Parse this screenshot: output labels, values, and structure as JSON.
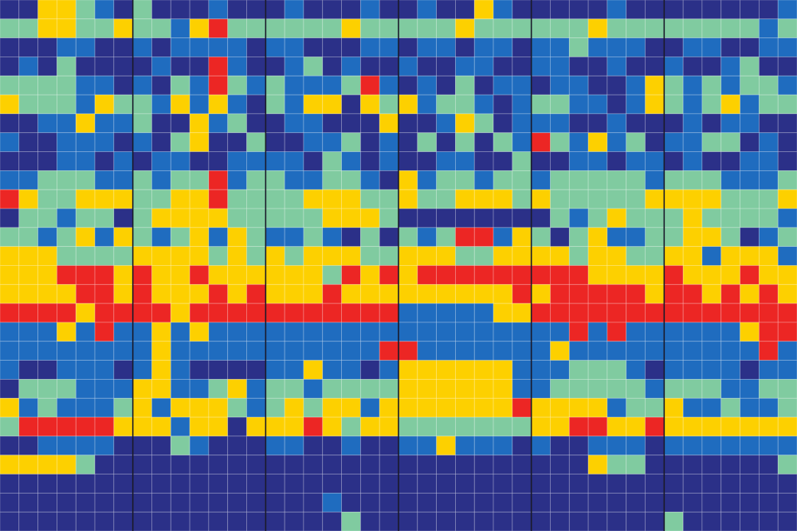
{
  "chart_data": {
    "type": "heatmap",
    "colors": [
      "#2b3088",
      "#1f6cbf",
      "#80cba0",
      "#fdd000",
      "#ec2624"
    ],
    "values": [
      [
        0,
        0,
        3,
        3,
        2,
        1,
        0,
        2,
        0,
        0,
        0,
        1,
        0,
        0,
        0,
        1,
        0,
        0,
        0,
        1,
        0,
        0,
        1,
        0,
        0,
        3,
        1,
        0,
        0,
        0,
        0,
        0,
        1,
        0,
        0,
        0,
        0,
        0,
        0,
        0,
        0,
        1
      ],
      [
        2,
        2,
        3,
        3,
        2,
        2,
        3,
        2,
        2,
        1,
        3,
        4,
        2,
        2,
        2,
        2,
        2,
        2,
        3,
        2,
        2,
        2,
        2,
        2,
        3,
        2,
        2,
        2,
        2,
        2,
        2,
        3,
        2,
        2,
        2,
        2,
        2,
        2,
        2,
        2,
        1,
        2
      ],
      [
        0,
        0,
        0,
        1,
        1,
        0,
        0,
        1,
        0,
        1,
        1,
        1,
        1,
        0,
        1,
        1,
        0,
        0,
        0,
        1,
        1,
        0,
        1,
        1,
        0,
        1,
        1,
        0,
        1,
        1,
        2,
        1,
        1,
        1,
        0,
        0,
        1,
        1,
        0,
        0,
        1,
        1
      ],
      [
        0,
        1,
        0,
        2,
        0,
        0,
        0,
        0,
        1,
        0,
        0,
        4,
        1,
        0,
        0,
        1,
        2,
        0,
        1,
        0,
        0,
        1,
        0,
        0,
        1,
        1,
        0,
        0,
        1,
        1,
        0,
        0,
        1,
        0,
        0,
        1,
        0,
        0,
        1,
        2,
        0,
        0
      ],
      [
        2,
        2,
        2,
        2,
        1,
        1,
        0,
        1,
        0,
        2,
        1,
        4,
        2,
        1,
        2,
        1,
        1,
        1,
        2,
        4,
        1,
        0,
        1,
        0,
        2,
        0,
        1,
        1,
        0,
        1,
        1,
        0,
        0,
        1,
        3,
        2,
        1,
        2,
        1,
        2,
        2,
        1
      ],
      [
        3,
        2,
        2,
        2,
        1,
        3,
        2,
        2,
        1,
        3,
        1,
        3,
        1,
        0,
        2,
        1,
        3,
        3,
        0,
        3,
        2,
        3,
        1,
        2,
        2,
        1,
        0,
        1,
        2,
        2,
        1,
        1,
        0,
        1,
        3,
        2,
        1,
        2,
        3,
        1,
        2,
        2
      ],
      [
        0,
        0,
        1,
        1,
        3,
        1,
        1,
        2,
        0,
        0,
        3,
        1,
        2,
        0,
        0,
        1,
        1,
        0,
        0,
        0,
        3,
        0,
        0,
        1,
        3,
        2,
        0,
        1,
        1,
        1,
        0,
        0,
        1,
        0,
        0,
        0,
        1,
        0,
        1,
        1,
        0,
        0
      ],
      [
        1,
        0,
        0,
        1,
        1,
        1,
        0,
        1,
        0,
        2,
        3,
        0,
        0,
        2,
        0,
        0,
        1,
        1,
        2,
        0,
        1,
        0,
        2,
        0,
        2,
        0,
        2,
        1,
        4,
        2,
        1,
        3,
        1,
        2,
        0,
        1,
        1,
        2,
        2,
        0,
        1,
        0
      ],
      [
        0,
        0,
        0,
        1,
        1,
        0,
        1,
        0,
        1,
        1,
        0,
        0,
        1,
        1,
        1,
        1,
        0,
        2,
        1,
        0,
        1,
        0,
        0,
        1,
        1,
        0,
        0,
        2,
        0,
        0,
        1,
        1,
        0,
        1,
        1,
        0,
        1,
        0,
        0,
        1,
        1,
        0
      ],
      [
        1,
        1,
        2,
        2,
        2,
        1,
        1,
        2,
        1,
        2,
        2,
        4,
        1,
        2,
        2,
        1,
        1,
        2,
        2,
        1,
        0,
        3,
        1,
        2,
        2,
        1,
        2,
        2,
        1,
        2,
        2,
        2,
        2,
        2,
        1,
        2,
        2,
        2,
        1,
        1,
        1,
        2
      ],
      [
        4,
        3,
        2,
        2,
        3,
        3,
        3,
        2,
        2,
        3,
        3,
        4,
        2,
        2,
        2,
        2,
        3,
        3,
        3,
        2,
        2,
        3,
        2,
        2,
        3,
        3,
        3,
        2,
        3,
        2,
        2,
        2,
        2,
        2,
        3,
        3,
        3,
        3,
        2,
        2,
        2,
        3
      ],
      [
        0,
        2,
        2,
        1,
        2,
        2,
        0,
        2,
        3,
        3,
        3,
        3,
        2,
        2,
        2,
        2,
        2,
        3,
        3,
        3,
        2,
        0,
        0,
        0,
        0,
        0,
        0,
        0,
        0,
        2,
        1,
        2,
        3,
        2,
        2,
        2,
        3,
        2,
        2,
        2,
        2,
        1
      ],
      [
        2,
        2,
        1,
        2,
        3,
        1,
        3,
        2,
        1,
        2,
        3,
        1,
        3,
        2,
        1,
        1,
        2,
        1,
        0,
        2,
        0,
        2,
        1,
        2,
        4,
        4,
        1,
        3,
        2,
        0,
        2,
        3,
        1,
        1,
        2,
        2,
        3,
        3,
        2,
        0,
        1,
        2
      ],
      [
        3,
        3,
        3,
        2,
        2,
        2,
        2,
        3,
        3,
        3,
        3,
        2,
        3,
        2,
        3,
        2,
        3,
        3,
        3,
        2,
        2,
        3,
        3,
        3,
        2,
        2,
        3,
        3,
        3,
        3,
        2,
        3,
        3,
        2,
        2,
        3,
        3,
        1,
        3,
        3,
        3,
        1
      ],
      [
        3,
        3,
        3,
        4,
        4,
        4,
        3,
        4,
        3,
        3,
        4,
        3,
        3,
        3,
        3,
        3,
        3,
        2,
        4,
        3,
        4,
        3,
        4,
        4,
        4,
        4,
        4,
        4,
        4,
        4,
        4,
        3,
        3,
        3,
        3,
        4,
        3,
        3,
        3,
        4,
        3,
        3
      ],
      [
        3,
        3,
        3,
        3,
        4,
        4,
        3,
        4,
        3,
        3,
        3,
        4,
        3,
        4,
        3,
        3,
        3,
        4,
        3,
        3,
        3,
        3,
        3,
        3,
        3,
        3,
        3,
        4,
        3,
        4,
        4,
        4,
        4,
        4,
        3,
        4,
        4,
        3,
        4,
        3,
        4,
        3
      ],
      [
        4,
        4,
        4,
        4,
        3,
        4,
        4,
        4,
        4,
        3,
        4,
        4,
        4,
        4,
        4,
        4,
        4,
        4,
        4,
        4,
        4,
        1,
        1,
        1,
        1,
        1,
        3,
        3,
        4,
        4,
        4,
        4,
        4,
        4,
        4,
        4,
        4,
        4,
        4,
        4,
        4,
        4
      ],
      [
        1,
        1,
        1,
        3,
        1,
        4,
        1,
        1,
        3,
        1,
        3,
        1,
        1,
        1,
        1,
        1,
        1,
        1,
        1,
        1,
        1,
        1,
        1,
        1,
        1,
        1,
        1,
        1,
        1,
        1,
        4,
        1,
        4,
        1,
        1,
        1,
        1,
        1,
        1,
        3,
        4,
        4
      ],
      [
        1,
        1,
        1,
        1,
        1,
        1,
        1,
        1,
        3,
        1,
        1,
        1,
        1,
        1,
        1,
        1,
        1,
        1,
        1,
        1,
        4,
        4,
        1,
        1,
        1,
        1,
        1,
        1,
        1,
        3,
        1,
        1,
        1,
        1,
        1,
        1,
        1,
        1,
        1,
        1,
        4,
        1
      ],
      [
        1,
        0,
        0,
        1,
        1,
        1,
        0,
        1,
        3,
        1,
        0,
        0,
        0,
        0,
        1,
        1,
        3,
        1,
        1,
        0,
        1,
        3,
        3,
        3,
        3,
        3,
        3,
        1,
        1,
        1,
        2,
        2,
        2,
        1,
        0,
        1,
        1,
        1,
        1,
        0,
        1,
        1
      ],
      [
        0,
        2,
        2,
        2,
        1,
        1,
        1,
        3,
        3,
        1,
        1,
        2,
        3,
        1,
        2,
        2,
        1,
        2,
        2,
        2,
        2,
        3,
        3,
        3,
        3,
        3,
        3,
        1,
        1,
        2,
        2,
        2,
        2,
        2,
        1,
        2,
        2,
        2,
        1,
        1,
        2,
        2
      ],
      [
        3,
        1,
        2,
        1,
        1,
        1,
        2,
        3,
        1,
        3,
        3,
        3,
        2,
        1,
        2,
        3,
        2,
        3,
        3,
        1,
        3,
        3,
        3,
        3,
        3,
        3,
        3,
        4,
        3,
        3,
        3,
        3,
        1,
        2,
        2,
        3,
        1,
        1,
        2,
        1,
        1,
        2
      ],
      [
        2,
        4,
        4,
        4,
        4,
        4,
        3,
        3,
        3,
        1,
        3,
        3,
        0,
        3,
        3,
        3,
        4,
        3,
        2,
        3,
        3,
        2,
        2,
        2,
        2,
        2,
        2,
        2,
        3,
        3,
        4,
        4,
        3,
        3,
        4,
        3,
        3,
        3,
        3,
        3,
        3,
        3
      ],
      [
        0,
        0,
        1,
        1,
        1,
        1,
        0,
        0,
        0,
        2,
        1,
        0,
        0,
        0,
        1,
        1,
        0,
        0,
        1,
        0,
        0,
        1,
        1,
        3,
        1,
        1,
        1,
        0,
        1,
        0,
        0,
        1,
        1,
        1,
        0,
        1,
        1,
        1,
        1,
        1,
        1,
        1
      ],
      [
        3,
        3,
        3,
        3,
        2,
        0,
        0,
        0,
        0,
        0,
        0,
        0,
        0,
        0,
        0,
        0,
        0,
        0,
        0,
        0,
        0,
        0,
        0,
        0,
        0,
        0,
        0,
        0,
        0,
        0,
        0,
        3,
        2,
        2,
        0,
        0,
        0,
        0,
        0,
        0,
        0,
        2
      ],
      [
        0,
        0,
        0,
        0,
        0,
        0,
        0,
        0,
        0,
        0,
        0,
        0,
        0,
        0,
        0,
        0,
        0,
        0,
        0,
        0,
        0,
        0,
        0,
        0,
        0,
        0,
        0,
        0,
        0,
        0,
        0,
        0,
        0,
        0,
        0,
        0,
        0,
        0,
        0,
        0,
        0,
        0
      ],
      [
        0,
        0,
        0,
        0,
        0,
        0,
        0,
        0,
        0,
        0,
        0,
        0,
        0,
        0,
        0,
        0,
        0,
        1,
        0,
        0,
        0,
        0,
        0,
        0,
        0,
        0,
        0,
        0,
        0,
        0,
        0,
        0,
        0,
        0,
        0,
        0,
        0,
        0,
        0,
        0,
        0,
        0
      ],
      [
        0,
        0,
        0,
        0,
        0,
        0,
        0,
        0,
        0,
        0,
        0,
        0,
        0,
        0,
        0,
        0,
        0,
        0,
        2,
        0,
        0,
        0,
        0,
        0,
        0,
        0,
        0,
        0,
        0,
        0,
        0,
        0,
        0,
        0,
        0,
        2,
        0,
        0,
        0,
        0,
        0,
        0
      ]
    ]
  }
}
